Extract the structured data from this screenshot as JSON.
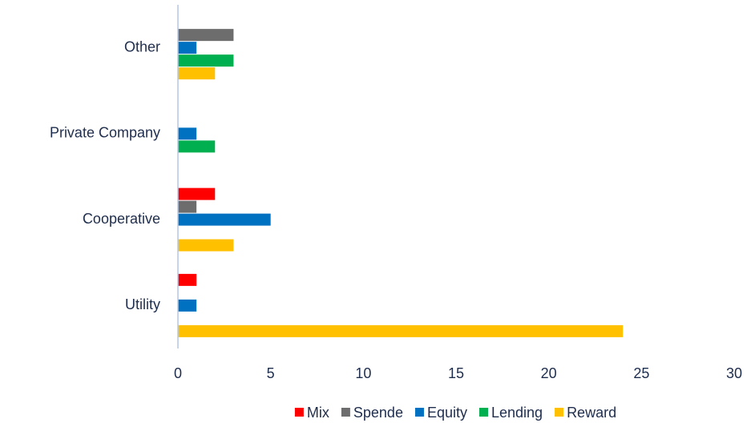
{
  "chart_data": {
    "type": "bar",
    "orientation": "horizontal",
    "categories": [
      "Utility",
      "Cooperative",
      "Private Company",
      "Other"
    ],
    "series": [
      {
        "name": "Mix",
        "color": "#ff0000",
        "values": [
          1,
          2,
          0,
          0
        ]
      },
      {
        "name": "Spende",
        "color": "#6d6d6d",
        "values": [
          0,
          1,
          0,
          3
        ]
      },
      {
        "name": "Equity",
        "color": "#0070c0",
        "values": [
          1,
          5,
          1,
          1
        ]
      },
      {
        "name": "Lending",
        "color": "#00b050",
        "values": [
          0,
          0,
          2,
          3
        ]
      },
      {
        "name": "Reward",
        "color": "#ffc000",
        "values": [
          24,
          3,
          0,
          2
        ]
      }
    ],
    "xlim": [
      0,
      30
    ],
    "xticks": [
      0,
      5,
      10,
      15,
      20,
      25,
      30
    ],
    "grid": false,
    "legend": "bottom"
  }
}
